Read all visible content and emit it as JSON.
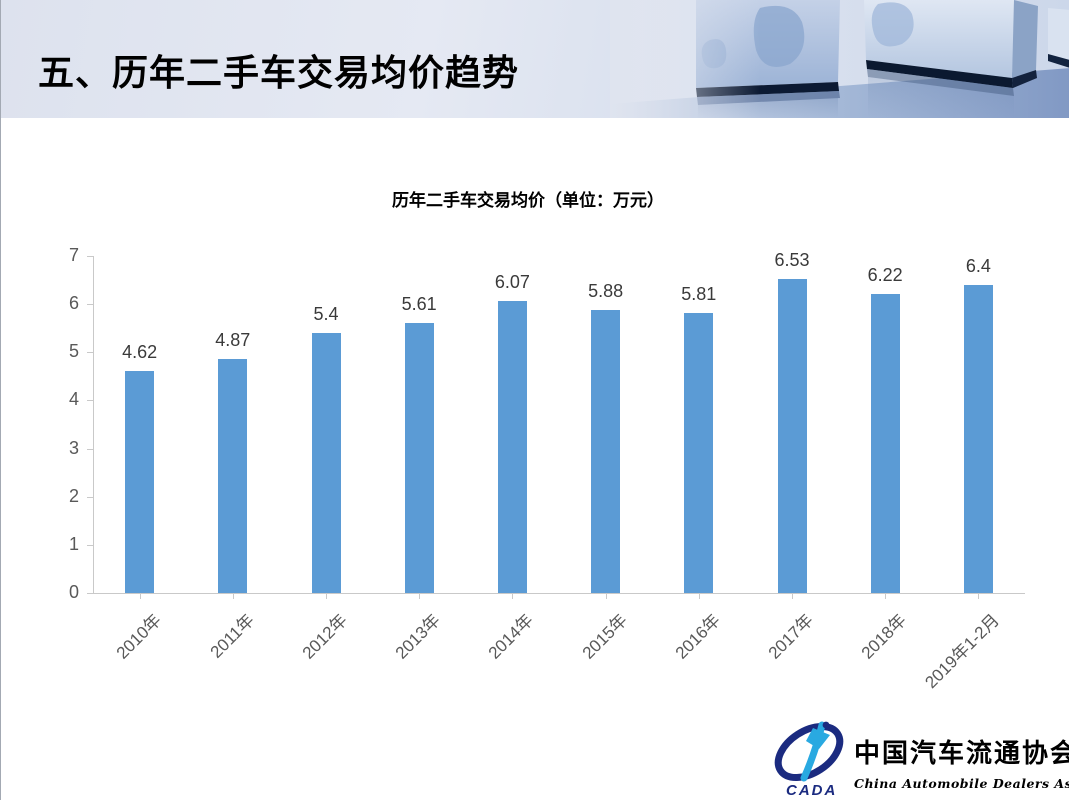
{
  "page": {
    "title": "五、历年二手车交易均价趋势"
  },
  "chart_data": {
    "type": "bar",
    "title": "历年二手车交易均价（单位：万元）",
    "categories": [
      "2010年",
      "2011年",
      "2012年",
      "2013年",
      "2014年",
      "2015年",
      "2016年",
      "2017年",
      "2018年",
      "2019年1-2月"
    ],
    "values": [
      4.62,
      4.87,
      5.4,
      5.61,
      6.07,
      5.88,
      5.81,
      6.53,
      6.22,
      6.4
    ],
    "xlabel": "",
    "ylabel": "",
    "ylim": [
      0,
      7
    ],
    "ytick_interval": 1,
    "bar_color": "#5B9BD5",
    "axis_color": "#c9c9c9",
    "grid": false,
    "legend": false,
    "data_labels": true
  },
  "logo": {
    "abbr": "CADA",
    "name_cn": "中国汽车流通协会",
    "name_en": "China Automobile Dealers Association",
    "navy": "#1b2b80",
    "light_blue": "#29a9e1"
  }
}
